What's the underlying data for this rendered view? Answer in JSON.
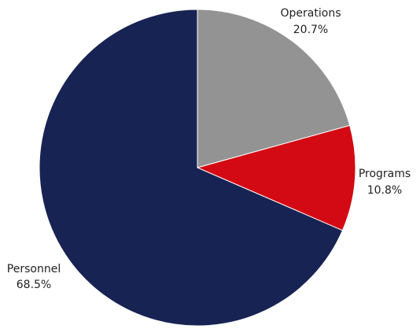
{
  "chart_data": {
    "type": "pie",
    "start_angle_deg": 0,
    "direction": "clockwise",
    "legend": "none",
    "slices": [
      {
        "label": "Operations",
        "value": 20.7,
        "display_value": "20.7%",
        "color": "#939393"
      },
      {
        "label": "Programs",
        "value": 10.8,
        "display_value": "10.8%",
        "color": "#d30a13"
      },
      {
        "label": "Personnel",
        "value": 68.5,
        "display_value": "68.5%",
        "color": "#172353"
      }
    ]
  }
}
